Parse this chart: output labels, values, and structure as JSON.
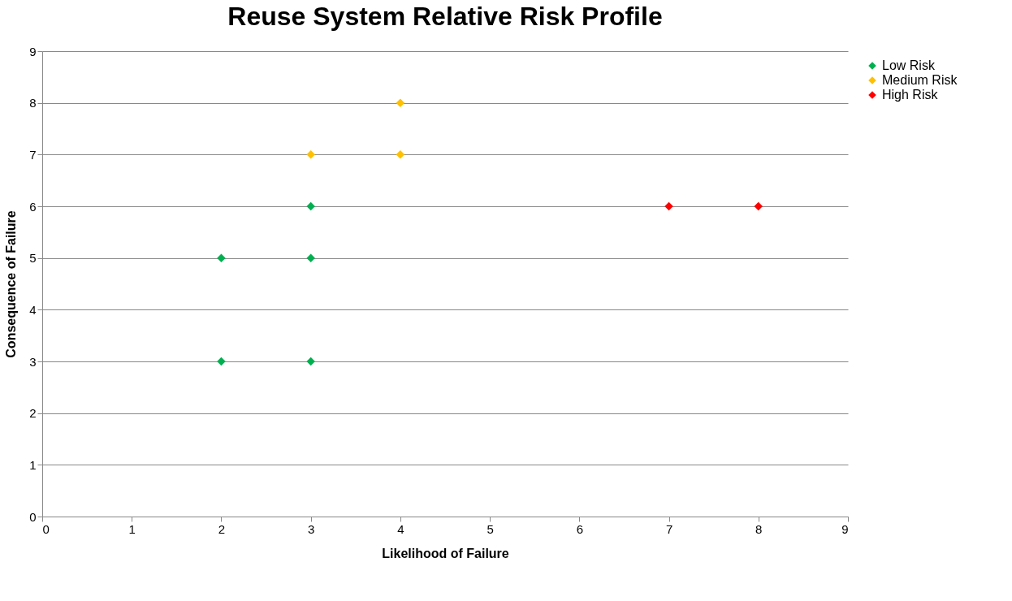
{
  "chart_data": {
    "type": "scatter",
    "title": "Reuse System Relative Risk Profile",
    "xlabel": "Likelihood of Failure",
    "ylabel": "Consequence of Failure",
    "series": [
      {
        "name": "Low Risk",
        "color": "#00b050",
        "x": [
          2,
          2,
          3,
          3,
          3
        ],
        "values": [
          5,
          3,
          6,
          5,
          3
        ]
      },
      {
        "name": "Medium Risk",
        "color": "#ffc000",
        "x": [
          3,
          4,
          4
        ],
        "values": [
          7,
          8,
          7
        ]
      },
      {
        "name": "High Risk",
        "color": "#ff0000",
        "x": [
          7,
          8
        ],
        "values": [
          6,
          6
        ]
      }
    ],
    "xlim": [
      0,
      9
    ],
    "xticks": [
      0,
      1,
      2,
      3,
      4,
      5,
      6,
      7,
      8,
      9
    ],
    "ylim": [
      0,
      9
    ],
    "yticks": [
      0,
      1,
      2,
      3,
      4,
      5,
      6,
      7,
      8,
      9
    ],
    "grid": "y",
    "legend": "right",
    "marker": "diamond"
  }
}
